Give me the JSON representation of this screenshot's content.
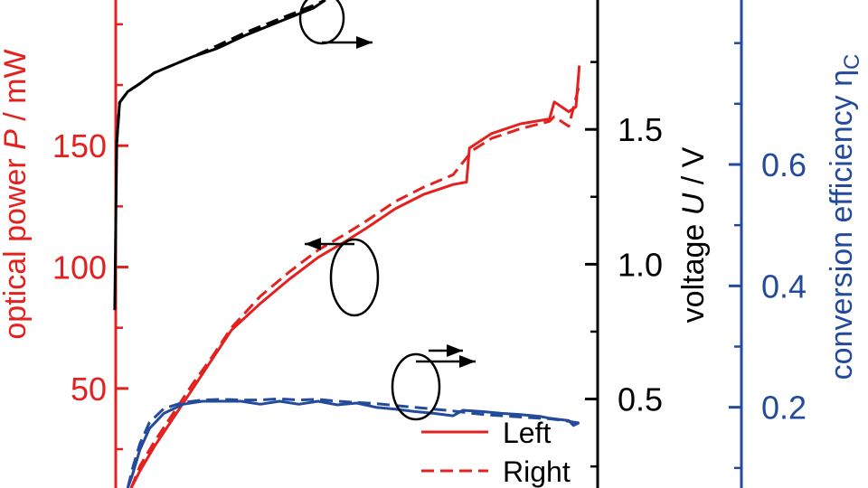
{
  "colors": {
    "power": "#e3211f",
    "voltage": "#000000",
    "efficiency": "#234a9b"
  },
  "chart_data": {
    "type": "line",
    "title": "",
    "xlabel": "",
    "legend": {
      "placement": "bottom-right",
      "entries": [
        {
          "label": "Left",
          "style": "solid"
        },
        {
          "label": "Right",
          "style": "dashed"
        }
      ]
    },
    "axes": {
      "power": {
        "side": "left",
        "label": "optical power  P / mW",
        "label_parts": [
          "optical power  ",
          "P",
          " / mW"
        ],
        "ticks": [
          "50",
          "100",
          "150"
        ],
        "range": [
          9,
          210
        ]
      },
      "voltage": {
        "side": "right",
        "label": "voltage  U / V",
        "label_parts": [
          "voltage  ",
          "U",
          " / V"
        ],
        "ticks": [
          "0.5",
          "1.0",
          "1.5"
        ],
        "range": [
          0.17,
          1.98
        ]
      },
      "efficiency": {
        "side": "right",
        "label": "conversion efficiency η",
        "label_parts": [
          "conversion efficiency ",
          "η",
          "C"
        ],
        "ticks": [
          "0.2",
          "0.4",
          "0.6"
        ],
        "range": [
          0.067,
          0.871
        ]
      }
    },
    "x": {
      "range": [
        0,
        10
      ],
      "ticks": [],
      "tick_labels": []
    },
    "series": [
      {
        "name": "Left",
        "axis": "power",
        "dash": false,
        "x": [
          0.32,
          0.5,
          0.8,
          1.2,
          1.6,
          2.0,
          2.4,
          3.0,
          3.6,
          4.2,
          4.8,
          5.2,
          5.8,
          6.4,
          7.0,
          7.28,
          7.34,
          7.8,
          8.4,
          9.0,
          9.1,
          9.4,
          9.55,
          9.62
        ],
        "y": [
          9,
          16,
          26,
          38,
          50,
          62,
          74,
          85,
          95,
          104,
          111,
          116,
          124,
          130,
          134,
          135,
          149,
          155,
          159,
          161,
          168,
          164,
          166,
          183
        ]
      },
      {
        "name": "Right",
        "axis": "power",
        "dash": true,
        "x": [
          0.32,
          0.5,
          0.8,
          1.2,
          1.6,
          2.0,
          2.4,
          3.0,
          3.6,
          4.2,
          4.8,
          5.2,
          5.8,
          6.4,
          7.0,
          7.4,
          7.8,
          8.4,
          9.0,
          9.1,
          9.4,
          9.62
        ],
        "y": [
          9,
          18,
          28,
          40,
          52,
          63,
          75,
          88,
          98,
          107,
          114,
          119,
          127,
          133,
          138,
          148,
          153,
          157,
          160,
          162,
          158,
          175
        ]
      },
      {
        "name": "U Left",
        "axis": "voltage",
        "dash": false,
        "x": [
          -0.02,
          0.02,
          0.08,
          0.25,
          0.5,
          0.8,
          1.2,
          1.6,
          2.1,
          2.7,
          3.4,
          4.1,
          4.35
        ],
        "y": [
          0.83,
          1.45,
          1.6,
          1.64,
          1.67,
          1.71,
          1.74,
          1.77,
          1.8,
          1.85,
          1.9,
          1.95,
          1.98
        ]
      },
      {
        "name": "U Right",
        "axis": "voltage",
        "dash": true,
        "x": [
          0.02,
          0.08,
          0.25,
          0.5,
          0.8,
          1.2,
          1.6,
          2.1,
          2.7,
          3.4,
          4.1,
          4.35
        ],
        "y": [
          1.45,
          1.6,
          1.64,
          1.67,
          1.71,
          1.74,
          1.77,
          1.81,
          1.86,
          1.91,
          1.96,
          1.98
        ]
      },
      {
        "name": "ηC Left",
        "axis": "efficiency",
        "dash": false,
        "x": [
          0.25,
          0.35,
          0.5,
          0.7,
          1.0,
          1.4,
          1.8,
          2.2,
          2.6,
          3.0,
          3.4,
          3.8,
          4.2,
          4.6,
          5.0,
          5.4,
          5.8,
          6.2,
          6.6,
          7.0,
          7.2,
          7.6,
          8.0,
          8.4,
          8.8,
          9.0,
          9.2,
          9.4,
          9.5,
          9.62
        ],
        "y": [
          0.067,
          0.09,
          0.13,
          0.165,
          0.19,
          0.205,
          0.21,
          0.21,
          0.21,
          0.205,
          0.21,
          0.205,
          0.21,
          0.204,
          0.207,
          0.2,
          0.197,
          0.193,
          0.19,
          0.186,
          0.195,
          0.193,
          0.19,
          0.188,
          0.185,
          0.182,
          0.18,
          0.178,
          0.17,
          0.175
        ]
      },
      {
        "name": "ηC Right",
        "axis": "efficiency",
        "dash": true,
        "x": [
          0.25,
          0.35,
          0.5,
          0.7,
          1.0,
          1.4,
          1.8,
          2.2,
          2.6,
          3.0,
          3.4,
          3.8,
          4.2,
          4.6,
          5.0,
          5.4,
          5.8,
          6.2,
          6.6,
          7.0,
          7.4,
          7.8,
          8.2,
          8.6,
          9.0,
          9.3,
          9.62
        ],
        "y": [
          0.067,
          0.1,
          0.14,
          0.175,
          0.198,
          0.208,
          0.212,
          0.213,
          0.212,
          0.212,
          0.214,
          0.212,
          0.213,
          0.21,
          0.208,
          0.206,
          0.203,
          0.2,
          0.197,
          0.194,
          0.19,
          0.187,
          0.185,
          0.183,
          0.181,
          0.178,
          0.174
        ]
      }
    ],
    "annotations": [
      {
        "kind": "ellipse-arrow",
        "target": "voltage",
        "direction": "right"
      },
      {
        "kind": "ellipse-arrow",
        "target": "power",
        "direction": "left"
      },
      {
        "kind": "ellipse-arrow",
        "target": "efficiency",
        "direction": "right"
      }
    ],
    "grid": false
  }
}
